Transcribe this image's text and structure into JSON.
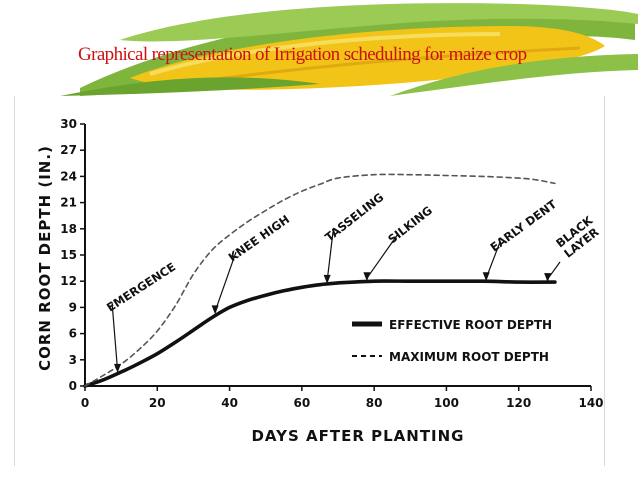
{
  "slide": {
    "title": "Graphical representation of Irrigation scheduling for maize crop",
    "header_image_icon": "corn-cob-icon",
    "colors": {
      "title": "#cc1111",
      "kernels": "#f2c418",
      "leaf": "#7fb53d"
    }
  },
  "chart_data": {
    "type": "line",
    "xlabel": "DAYS AFTER PLANTING",
    "ylabel": "CORN ROOT DEPTH (IN.)",
    "xlim": [
      0,
      140
    ],
    "ylim": [
      0,
      30
    ],
    "x_ticks": [
      "0",
      "20",
      "40",
      "60",
      "80",
      "100",
      "120",
      "140"
    ],
    "y_ticks": [
      "0",
      "3",
      "6",
      "9",
      "12",
      "15",
      "18",
      "21",
      "24",
      "27",
      "30"
    ],
    "grid": false,
    "legend_position": "lower-right",
    "series": [
      {
        "name": "EFFECTIVE ROOT DEPTH",
        "style": "solid",
        "x": [
          0,
          5,
          10,
          15,
          20,
          25,
          30,
          35,
          40,
          45,
          50,
          55,
          60,
          65,
          70,
          80,
          90,
          100,
          110,
          120,
          130
        ],
        "y": [
          0,
          0.7,
          1.6,
          2.6,
          3.7,
          5.0,
          6.4,
          7.8,
          9.0,
          9.8,
          10.4,
          10.9,
          11.3,
          11.6,
          11.8,
          12.0,
          12.0,
          12.0,
          12.0,
          11.9,
          11.9
        ]
      },
      {
        "name": "MAXIMUM ROOT DEPTH",
        "style": "dashed",
        "x": [
          0,
          5,
          10,
          15,
          20,
          25,
          30,
          35,
          40,
          45,
          50,
          55,
          60,
          65,
          70,
          80,
          90,
          100,
          110,
          120,
          125,
          130
        ],
        "y": [
          0,
          1.2,
          2.5,
          4.2,
          6.3,
          9.2,
          12.8,
          15.5,
          17.3,
          18.8,
          20.1,
          21.3,
          22.3,
          23.1,
          23.8,
          24.2,
          24.2,
          24.1,
          24.0,
          23.8,
          23.6,
          23.2
        ]
      }
    ],
    "annotations": [
      {
        "label": "EMERGENCE",
        "x": 9,
        "y": 1.5
      },
      {
        "label": "KNEE HIGH",
        "x": 36,
        "y": 8.2
      },
      {
        "label": "TASSELING",
        "x": 67,
        "y": 11.7
      },
      {
        "label": "SILKING",
        "x": 78,
        "y": 12.0
      },
      {
        "label": "EARLY DENT",
        "x": 111,
        "y": 12.0
      },
      {
        "label": "BLACK\nLAYER",
        "x": 128,
        "y": 11.9
      }
    ]
  }
}
